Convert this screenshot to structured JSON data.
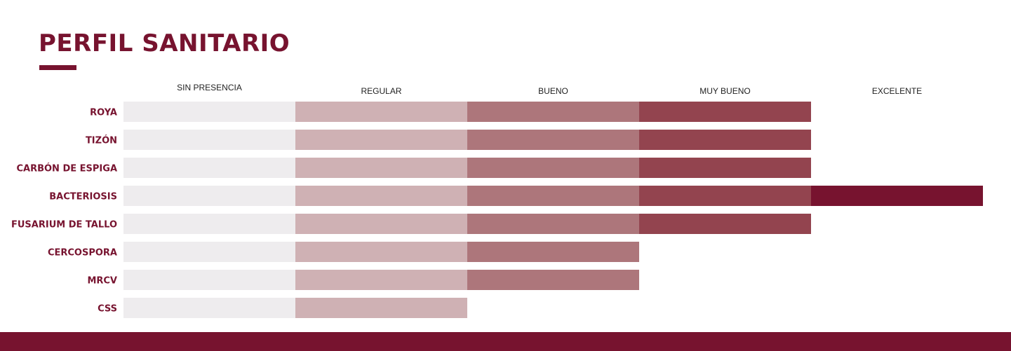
{
  "page": {
    "title": "PERFIL SANITARIO",
    "title_color": "#77132f",
    "footer_color": "#77132f"
  },
  "chart_data": {
    "type": "bar",
    "orientation": "horizontal",
    "stacked": true,
    "title": "PERFIL SANITARIO",
    "levels": [
      "SIN PRESENCIA",
      "REGULAR",
      "BUENO",
      "MUY BUENO",
      "EXCELENTE"
    ],
    "level_colors": [
      "#eeecee",
      "#cfb1b4",
      "#ad767b",
      "#93444f",
      "#77132f"
    ],
    "categories": [
      "ROYA",
      "TIZÓN",
      "CARBÓN DE ESPIGA",
      "BACTERIOSIS",
      "FUSARIUM DE TALLO",
      "CERCOSPORA",
      "MRCV",
      "CSS"
    ],
    "values": [
      4,
      4,
      4,
      5,
      4,
      3,
      3,
      2
    ],
    "xlim": [
      0,
      5
    ],
    "grid": false,
    "label_color": "#77132f",
    "header_color": "#222222"
  }
}
